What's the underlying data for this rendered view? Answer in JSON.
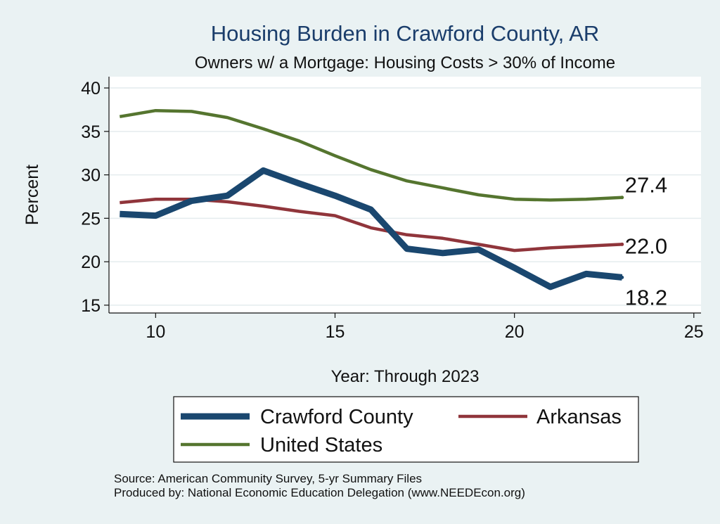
{
  "chart_data": {
    "type": "line",
    "title": "Housing Burden in Crawford County, AR",
    "subtitle": "Owners w/ a Mortgage: Housing Costs > 30% of Income",
    "xlabel": "Year: Through 2023",
    "ylabel": "Percent",
    "xlim": [
      8.7,
      25.2
    ],
    "ylim": [
      14.1,
      41.3
    ],
    "xticks": [
      10,
      15,
      20,
      25
    ],
    "yticks": [
      15,
      20,
      25,
      30,
      35,
      40
    ],
    "grid": true,
    "legend_position": "bottom",
    "series": [
      {
        "name": "Crawford County",
        "color": "#1a476f",
        "x": [
          9,
          10,
          11,
          12,
          13,
          14,
          15,
          16,
          17,
          18,
          19,
          20,
          21,
          22,
          23
        ],
        "values": [
          25.5,
          25.3,
          27.0,
          27.6,
          30.5,
          29.0,
          27.6,
          26.0,
          21.5,
          21.0,
          21.4,
          19.3,
          17.1,
          18.6,
          18.2
        ],
        "end_label": "18.2"
      },
      {
        "name": "Arkansas",
        "color": "#90353b",
        "x": [
          9,
          10,
          11,
          12,
          13,
          14,
          15,
          16,
          17,
          18,
          19,
          20,
          21,
          22,
          23
        ],
        "values": [
          26.8,
          27.2,
          27.2,
          26.9,
          26.4,
          25.8,
          25.3,
          23.9,
          23.1,
          22.7,
          22.0,
          21.3,
          21.6,
          21.8,
          22.0
        ],
        "end_label": "22.0"
      },
      {
        "name": "United States",
        "color": "#55752f",
        "x": [
          9,
          10,
          11,
          12,
          13,
          14,
          15,
          16,
          17,
          18,
          19,
          20,
          21,
          22,
          23
        ],
        "values": [
          36.7,
          37.4,
          37.3,
          36.6,
          35.3,
          33.9,
          32.2,
          30.6,
          29.3,
          28.5,
          27.7,
          27.2,
          27.1,
          27.2,
          27.4
        ],
        "end_label": "27.4"
      }
    ]
  },
  "footer": {
    "source": "Source: American Community Survey, 5-yr Summary Files",
    "produced_by": "Produced by: National Economic Education Delegation (www.NEEDEcon.org)"
  }
}
